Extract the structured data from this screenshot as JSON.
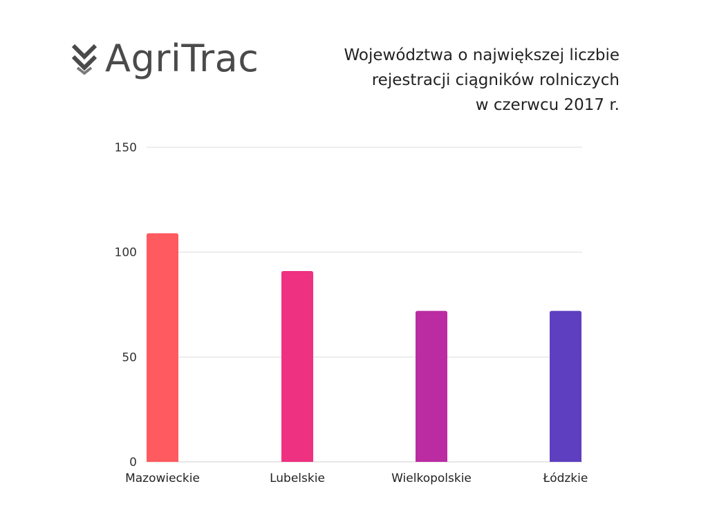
{
  "brand": {
    "name": "AgriTrac",
    "icon": "double-chevron-down-icon",
    "color": "#4a4a4a"
  },
  "chart_data": {
    "type": "bar",
    "title_lines": [
      "Województwa o największej liczbie",
      "rejestracji ciągników rolniczych",
      "w czerwcu 2017 r."
    ],
    "categories": [
      "Mazowieckie",
      "Lubelskie",
      "Wielkopolskie",
      "Łódzkie"
    ],
    "values": [
      109,
      91,
      72,
      72
    ],
    "colors": [
      "#ff5a5f",
      "#ee3180",
      "#bb2ca2",
      "#5e3fbf"
    ],
    "ylim": [
      0,
      150
    ],
    "yticks": [
      0,
      50,
      100,
      150
    ],
    "xlabel": "",
    "ylabel": "",
    "grid": true,
    "legend": "none"
  }
}
